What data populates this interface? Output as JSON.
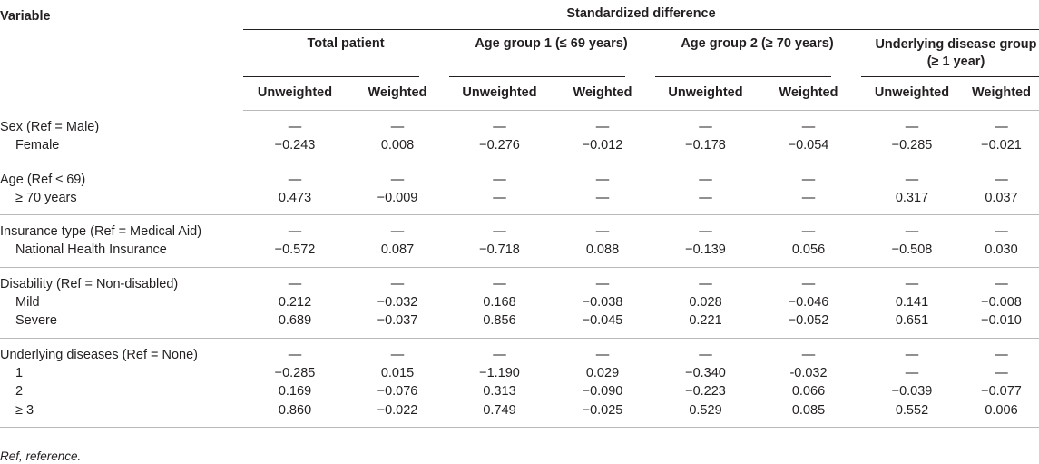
{
  "header": {
    "variable": "Variable",
    "standardized_difference": "Standardized difference",
    "groups": [
      "Total patient",
      "Age group 1 (≤ 69 years)",
      "Age group 2 (≥ 70 years)",
      "Underlying disease group (≥ 1 year)"
    ],
    "unweighted": "Unweighted",
    "weighted": "Weighted"
  },
  "rows": [
    {
      "label": "Sex (Ref = Male)",
      "indent": false,
      "values": [
        "—",
        "—",
        "—",
        "—",
        "—",
        "—",
        "—",
        "—"
      ]
    },
    {
      "label": "Female",
      "indent": true,
      "values": [
        "−0.243",
        "0.008",
        "−0.276",
        "−0.012",
        "−0.178",
        "−0.054",
        "−0.285",
        "−0.021"
      ]
    },
    {
      "label": "Age (Ref ≤ 69)",
      "indent": false,
      "values": [
        "—",
        "—",
        "—",
        "—",
        "—",
        "—",
        "—",
        "—"
      ]
    },
    {
      "label": "≥ 70 years",
      "indent": true,
      "values": [
        "0.473",
        "−0.009",
        "—",
        "—",
        "—",
        "—",
        "0.317",
        "0.037"
      ]
    },
    {
      "label": "Insurance type (Ref = Medical Aid)",
      "indent": false,
      "values": [
        "—",
        "—",
        "—",
        "—",
        "—",
        "—",
        "—",
        "—"
      ]
    },
    {
      "label": "National Health Insurance",
      "indent": true,
      "values": [
        "−0.572",
        "0.087",
        "−0.718",
        "0.088",
        "−0.139",
        "0.056",
        "−0.508",
        "0.030"
      ]
    },
    {
      "label": "Disability (Ref = Non-disabled)",
      "indent": false,
      "values": [
        "—",
        "—",
        "—",
        "—",
        "—",
        "—",
        "—",
        "—"
      ]
    },
    {
      "label": "Mild",
      "indent": true,
      "values": [
        "0.212",
        "−0.032",
        "0.168",
        "−0.038",
        "0.028",
        "−0.046",
        "0.141",
        "−0.008"
      ]
    },
    {
      "label": "Severe",
      "indent": true,
      "values": [
        "0.689",
        "−0.037",
        "0.856",
        "−0.045",
        "0.221",
        "−0.052",
        "0.651",
        "−0.010"
      ]
    },
    {
      "label": "Underlying diseases (Ref = None)",
      "indent": false,
      "values": [
        "—",
        "—",
        "—",
        "—",
        "—",
        "—",
        "—",
        "—"
      ]
    },
    {
      "label": "1",
      "indent": true,
      "values": [
        "−0.285",
        "0.015",
        "−1.190",
        "0.029",
        "−0.340",
        "-0.032",
        "—",
        "—"
      ]
    },
    {
      "label": "2",
      "indent": true,
      "values": [
        "0.169",
        "−0.076",
        "0.313",
        "−0.090",
        "−0.223",
        "0.066",
        "−0.039",
        "−0.077"
      ]
    },
    {
      "label": "≥ 3",
      "indent": true,
      "values": [
        "0.860",
        "−0.022",
        "0.749",
        "−0.025",
        "0.529",
        "0.085",
        "0.552",
        "0.006"
      ]
    }
  ],
  "footnote": "Ref, reference."
}
